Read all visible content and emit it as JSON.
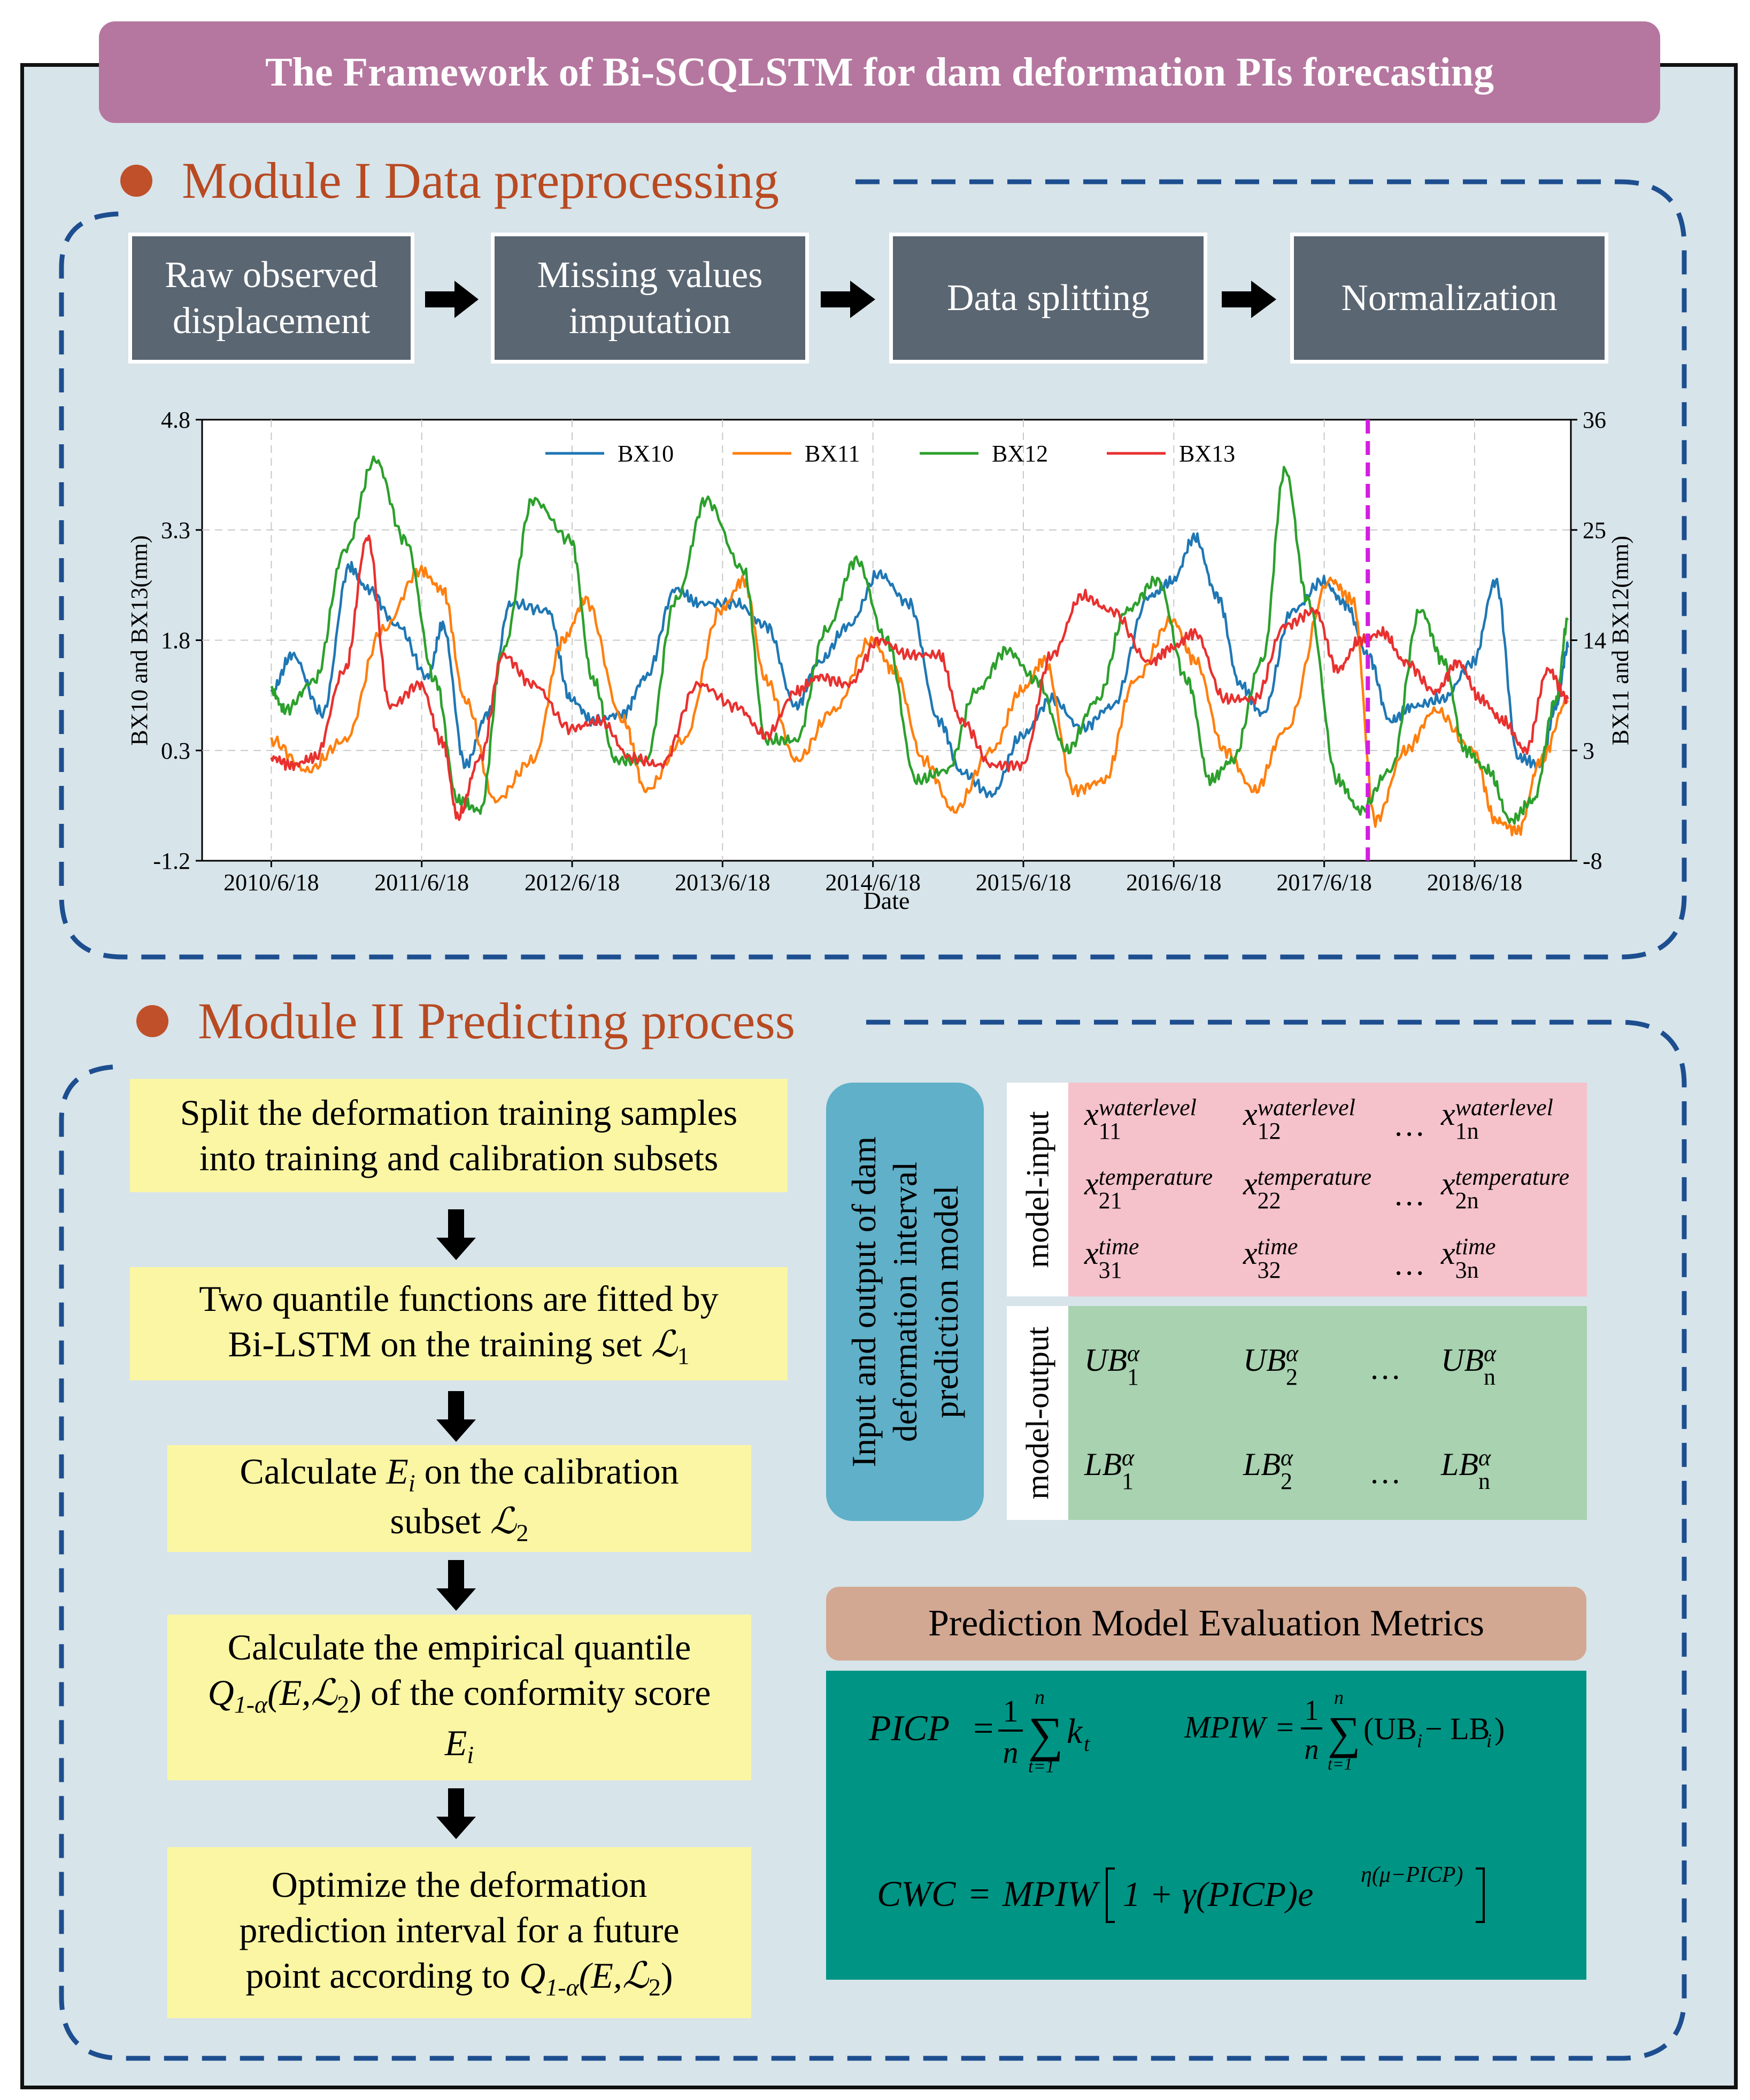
{
  "banner": {
    "title": "The Framework of Bi-SCQLSTM for dam deformation PIs forecasting"
  },
  "module1": {
    "title": "Module I  Data preprocessing",
    "steps": [
      {
        "label": "Raw  observed displacement"
      },
      {
        "label": "Missing values imputation"
      },
      {
        "label": "Data splitting"
      },
      {
        "label": "Normalization"
      }
    ]
  },
  "chart_data": {
    "type": "line",
    "title": "",
    "xlabel": "Date",
    "ylabel_left": "BX10 and BX13(mm)",
    "ylabel_right": "BX11 and BX12(mm)",
    "x_ticks": [
      "2010/6/18",
      "2011/6/18",
      "2012/6/18",
      "2013/6/18",
      "2014/6/18",
      "2015/6/18",
      "2016/6/18",
      "2017/6/18",
      "2018/6/18"
    ],
    "y_left_ticks": [
      "-1.2",
      "0.3",
      "1.8",
      "3.3",
      "4.8"
    ],
    "y_right_ticks": [
      "-8",
      "3",
      "14",
      "25",
      "36"
    ],
    "ylim_left": [
      -1.2,
      4.8
    ],
    "ylim_right": [
      -8,
      36
    ],
    "xlim_years": [
      2010.0,
      2019.1
    ],
    "grid": true,
    "legend_position": "top-center",
    "split_line_year": 2017.75,
    "series": [
      {
        "name": "BX10",
        "axis": "left",
        "color": "#1f77b4",
        "x": [
          2010.46,
          2010.6,
          2010.8,
          2010.98,
          2011.1,
          2011.3,
          2011.5,
          2011.6,
          2011.75,
          2011.9,
          2012.05,
          2012.3,
          2012.45,
          2012.6,
          2012.8,
          2012.95,
          2013.15,
          2013.3,
          2013.55,
          2013.75,
          2013.95,
          2014.1,
          2014.3,
          2014.5,
          2014.7,
          2014.9,
          2015.05,
          2015.25,
          2015.45,
          2015.65,
          2015.85,
          2016.05,
          2016.3,
          2016.45,
          2016.6,
          2016.75,
          2016.9,
          2017.05,
          2017.25,
          2017.45,
          2017.6,
          2017.75,
          2017.9,
          2018.05,
          2018.25,
          2018.45,
          2018.6,
          2018.75,
          2018.9,
          2019.0,
          2019.08
        ],
        "y": [
          1.1,
          1.6,
          0.8,
          2.8,
          2.5,
          2.0,
          1.3,
          2.0,
          0.1,
          0.8,
          2.3,
          2.2,
          1.0,
          0.7,
          0.8,
          1.3,
          2.5,
          2.3,
          2.3,
          2.0,
          0.9,
          1.5,
          2.0,
          2.7,
          2.3,
          0.7,
          0.0,
          -0.3,
          0.5,
          1.0,
          0.6,
          0.9,
          2.4,
          2.6,
          3.2,
          2.4,
          1.2,
          0.8,
          2.2,
          2.6,
          2.3,
          1.6,
          0.7,
          0.9,
          1.0,
          1.5,
          2.6,
          0.2,
          0.1,
          0.9,
          1.7
        ]
      },
      {
        "name": "BX11",
        "axis": "right",
        "color": "#ff7f0e",
        "x": [
          2010.46,
          2010.7,
          2010.95,
          2011.2,
          2011.45,
          2011.6,
          2011.75,
          2011.95,
          2012.2,
          2012.4,
          2012.55,
          2012.8,
          2012.95,
          2013.2,
          2013.45,
          2013.6,
          2013.75,
          2013.95,
          2014.2,
          2014.45,
          2014.6,
          2014.8,
          2015.0,
          2015.25,
          2015.45,
          2015.6,
          2015.8,
          2016.0,
          2016.2,
          2016.45,
          2016.6,
          2016.8,
          2017.0,
          2017.2,
          2017.5,
          2017.65,
          2017.8,
          2018.0,
          2018.2,
          2018.45,
          2018.6,
          2018.75,
          2018.9,
          2019.08
        ],
        "y": [
          4,
          1,
          4,
          15,
          21,
          19,
          8,
          -2,
          2,
          14,
          18,
          6,
          -1,
          4,
          17,
          20,
          10,
          2,
          7,
          14,
          11,
          2,
          -3,
          3,
          9,
          12,
          -1,
          0,
          10,
          16,
          12,
          3,
          -1,
          5,
          20,
          18,
          -4,
          3,
          7,
          3,
          -4,
          -5,
          2,
          8
        ]
      },
      {
        "name": "BX12",
        "axis": "right",
        "color": "#2ca02c",
        "x": [
          2010.46,
          2010.55,
          2010.75,
          2010.95,
          2011.15,
          2011.35,
          2011.55,
          2011.7,
          2011.85,
          2012.0,
          2012.2,
          2012.45,
          2012.6,
          2012.75,
          2012.95,
          2013.15,
          2013.35,
          2013.6,
          2013.75,
          2013.95,
          2014.15,
          2014.35,
          2014.55,
          2014.75,
          2014.95,
          2015.15,
          2015.35,
          2015.55,
          2015.75,
          2015.95,
          2016.15,
          2016.35,
          2016.55,
          2016.7,
          2016.85,
          2017.05,
          2017.2,
          2017.35,
          2017.55,
          2017.7,
          2017.9,
          2018.1,
          2018.25,
          2018.4,
          2018.55,
          2018.7,
          2018.85,
          2019.0,
          2019.08
        ],
        "y": [
          9,
          7,
          10,
          23,
          32,
          24,
          10,
          -2,
          -3,
          13,
          28,
          24,
          10,
          2,
          2,
          18,
          28,
          21,
          4,
          4,
          15,
          22,
          14,
          0,
          1,
          9,
          13,
          10,
          3,
          8,
          17,
          20,
          10,
          0,
          2,
          12,
          31,
          18,
          0,
          -3,
          1,
          17,
          12,
          3,
          1,
          -4,
          -2,
          8,
          16
        ]
      },
      {
        "name": "BX13",
        "axis": "left",
        "color": "#e8312f",
        "x": [
          2010.46,
          2010.6,
          2010.75,
          2010.95,
          2011.1,
          2011.25,
          2011.45,
          2011.6,
          2011.7,
          2011.85,
          2012.0,
          2012.2,
          2012.45,
          2012.65,
          2012.85,
          2013.05,
          2013.3,
          2013.55,
          2013.75,
          2013.95,
          2014.1,
          2014.3,
          2014.5,
          2014.7,
          2014.9,
          2015.05,
          2015.25,
          2015.45,
          2015.65,
          2015.85,
          2016.05,
          2016.3,
          2016.45,
          2016.6,
          2016.8,
          2017.0,
          2017.2,
          2017.4,
          2017.55,
          2017.7,
          2017.85,
          2018.0,
          2018.2,
          2018.35,
          2018.5,
          2018.65,
          2018.8,
          2018.95,
          2019.08
        ],
        "y": [
          0.2,
          0.1,
          0.2,
          1.4,
          3.2,
          0.9,
          1.2,
          0.4,
          -0.6,
          0.2,
          1.6,
          1.2,
          0.6,
          0.7,
          0.2,
          0.1,
          1.2,
          0.9,
          0.5,
          1.1,
          1.3,
          1.2,
          1.8,
          1.6,
          1.6,
          0.7,
          0.1,
          0.1,
          1.6,
          2.4,
          2.2,
          1.5,
          1.7,
          1.9,
          1.0,
          1.0,
          2.0,
          2.2,
          1.4,
          1.8,
          1.9,
          1.5,
          1.1,
          1.5,
          1.0,
          0.7,
          0.3,
          1.4,
          1.0
        ]
      }
    ]
  },
  "module2": {
    "title": "Module II  Predicting process",
    "steps": [
      {
        "line1": "Split the deformation training samples",
        "line2": "into training and calibration subsets"
      },
      {
        "line1": "Two quantile functions are fitted by",
        "line2": "Bi-LSTM on the training set",
        "sym": "ℒ",
        "sub": "1"
      },
      {
        "pre": "Calculate ",
        "var": "E",
        "vsub": "i",
        "post": " on the calibration",
        "line2": "subset ",
        "sym": "ℒ",
        "sub": "2"
      },
      {
        "line1": "Calculate the empirical quantile",
        "q": "Q",
        "qsub": "1-α",
        "qargs": "(E,",
        "sym": "ℒ",
        "sub": "2",
        "qclose": ")",
        "post": " of the conformity score",
        "var": "E",
        "vsub": "i"
      },
      {
        "line1": "Optimize the deformation",
        "line2": "prediction interval for a future",
        "pre3": "point according to ",
        "q": "Q",
        "qsub": "1-α",
        "qargs": "(E,",
        "sym": "ℒ",
        "sub": "2",
        "qclose": ")"
      }
    ],
    "io": {
      "side_label": "Input and output of dam deformation interval prediction model",
      "input_label": "model-input",
      "output_label": "model-output",
      "dots": "…",
      "inputs": [
        [
          {
            "b": "x",
            "sup": "waterlevel",
            "sub": "11"
          },
          {
            "b": "x",
            "sup": "waterlevel",
            "sub": "12"
          },
          {
            "b": "x",
            "sup": "waterlevel",
            "sub": "1n"
          }
        ],
        [
          {
            "b": "x",
            "sup": "temperature",
            "sub": "21"
          },
          {
            "b": "x",
            "sup": "temperature",
            "sub": "22"
          },
          {
            "b": "x",
            "sup": "temperature",
            "sub": "2n"
          }
        ],
        [
          {
            "b": "x",
            "sup": "time",
            "sub": "31"
          },
          {
            "b": "x",
            "sup": "time",
            "sub": "32"
          },
          {
            "b": "x",
            "sup": "time",
            "sub": "3n"
          }
        ]
      ],
      "outputs": [
        [
          {
            "b": "UB",
            "sup": "α",
            "sub": "1"
          },
          {
            "b": "UB",
            "sup": "α",
            "sub": "2"
          },
          {
            "b": "UB",
            "sup": "α",
            "sub": "n"
          }
        ],
        [
          {
            "b": "LB",
            "sup": "α",
            "sub": "1"
          },
          {
            "b": "LB",
            "sup": "α",
            "sub": "2"
          },
          {
            "b": "LB",
            "sup": "α",
            "sub": "n"
          }
        ]
      ]
    },
    "metrics": {
      "title": "Prediction Model Evaluation Metrics",
      "picp_lhs": "PICP",
      "mpiw_lhs": "MPIW",
      "one": "1",
      "n": "n",
      "t1": "t=1",
      "picp_term": "k",
      "picp_sub": "t",
      "mpiw_term_open": "(UB",
      "mpiw_term_mid": " − LB",
      "mpiw_term_close": ")",
      "mpiw_sub": "i",
      "cwc_lhs": "CWC",
      "cwc_rhs_a": "MPIW",
      "cwc_rhs_b": "1 + γ(PICP)e",
      "cwc_exp": "η(μ−PICP)"
    }
  },
  "colors": {
    "banner": "#b5779f",
    "module_title": "#b84a22",
    "step_box": "#5a6672",
    "yellow": "#fbf6a4",
    "pink": "#f5c2cb",
    "green": "#a8d2b0",
    "teal": "#009484",
    "dashed": "#1d4e8f"
  }
}
